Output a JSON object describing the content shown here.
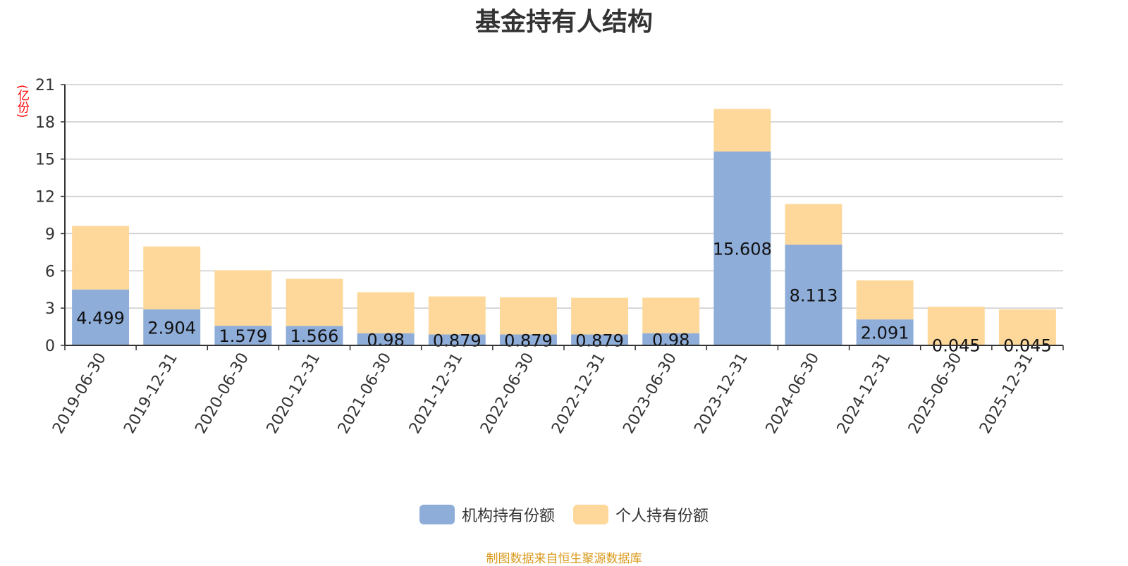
{
  "title": "基金持有人结构",
  "source_note": "制图数据来自恒生聚源数据库",
  "colors": {
    "institutional": "#8eadd9",
    "individual": "#fdd89a",
    "grid": "#cccccc",
    "axis": "#333333",
    "unit": "#ff0000",
    "source": "#d99a1c"
  },
  "chart_data": {
    "type": "bar",
    "stacked": true,
    "title": "基金持有人结构",
    "y_unit": "(亿份)",
    "ylim": [
      0,
      21
    ],
    "yticks": [
      0,
      3,
      6,
      9,
      12,
      15,
      18,
      21
    ],
    "grid": true,
    "legend_position": "bottom-center",
    "categories": [
      "2019-06-30",
      "2019-12-31",
      "2020-06-30",
      "2020-12-31",
      "2021-06-30",
      "2021-12-31",
      "2022-06-30",
      "2022-12-31",
      "2023-06-30",
      "2023-12-31",
      "2024-06-30",
      "2024-12-31",
      "2025-06-30",
      "2025-12-31"
    ],
    "series": [
      {
        "name": "机构持有份额",
        "color": "#8eadd9",
        "values": [
          4.499,
          2.904,
          1.579,
          1.566,
          0.98,
          0.879,
          0.879,
          0.879,
          0.98,
          15.608,
          8.113,
          2.091,
          0.045,
          0.045
        ],
        "labels": [
          "4.499",
          "2.904",
          "1.579",
          "1.566",
          "0.98",
          "0.879",
          "0.879",
          "0.879",
          "0.98",
          "15.608",
          "8.113",
          "2.091",
          "0.045",
          "0.045"
        ]
      },
      {
        "name": "个人持有份额",
        "color": "#fdd89a",
        "values": [
          5.12,
          5.06,
          4.47,
          3.79,
          3.3,
          3.06,
          3.0,
          2.95,
          2.86,
          3.43,
          3.27,
          3.15,
          3.06,
          2.85
        ]
      }
    ]
  }
}
